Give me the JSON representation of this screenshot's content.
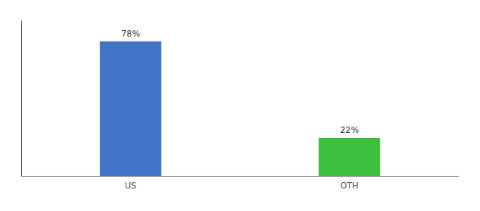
{
  "chart_data": {
    "type": "bar",
    "categories": [
      "US",
      "OTH"
    ],
    "values": [
      78,
      22
    ],
    "value_labels": [
      "78%",
      "22%"
    ],
    "colors": [
      "#4472C4",
      "#3DBF3D"
    ],
    "ylim": [
      0,
      89.7
    ],
    "data_labels": true,
    "tick_labels": "x",
    "grid": false
  }
}
